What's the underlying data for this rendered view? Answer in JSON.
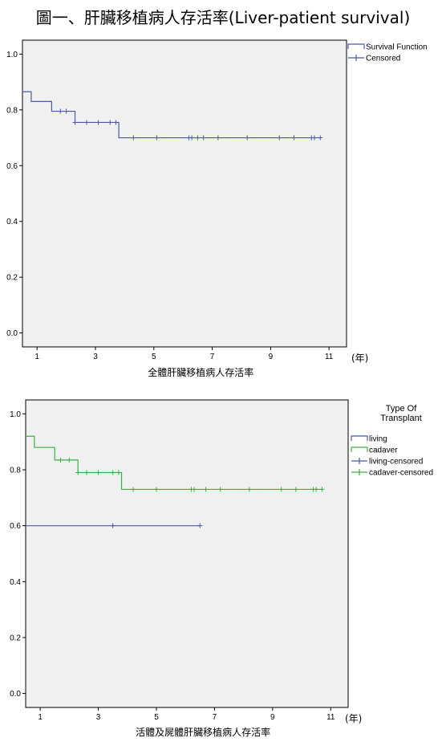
{
  "page_title": "圖一、肝臟移植病人存活率(Liver-patient survival)",
  "chart_data": [
    {
      "type": "line",
      "step": "post",
      "xlabel": "全體肝臟移植病人存活率",
      "x_unit": "(年)",
      "xlim": [
        0.5,
        11.6
      ],
      "ylim": [
        -0.05,
        1.05
      ],
      "xticks": [
        1,
        3,
        5,
        7,
        9,
        11
      ],
      "yticks": [
        0.0,
        0.2,
        0.4,
        0.6,
        0.8,
        1.0
      ],
      "ytick_labels": [
        "0.0",
        "0.2",
        "0.4",
        "0.6",
        "0.8",
        "1.0"
      ],
      "grid": false,
      "legend_position": "right-top",
      "legend_title": "",
      "series": [
        {
          "name": "Survival Function",
          "censored_name": "Censored",
          "color": "#4a5aa8",
          "steps": [
            [
              0.5,
              0.865
            ],
            [
              0.8,
              0.83
            ],
            [
              1.5,
              0.795
            ],
            [
              2.3,
              0.755
            ],
            [
              3.8,
              0.7
            ],
            [
              10.7,
              0.7
            ]
          ],
          "censored": [
            1.8,
            2.0,
            2.3,
            2.7,
            3.1,
            3.5,
            3.7,
            4.3,
            5.1,
            6.2,
            6.3,
            6.5,
            6.7,
            7.2,
            8.2,
            9.3,
            9.8,
            10.4,
            10.5,
            10.7
          ]
        }
      ]
    },
    {
      "type": "line",
      "step": "post",
      "xlabel": "活體及屍體肝臟移植病人存活率",
      "x_unit": "(年)",
      "xlim": [
        0.5,
        11.6
      ],
      "ylim": [
        -0.05,
        1.05
      ],
      "xticks": [
        1,
        3,
        5,
        7,
        9,
        11
      ],
      "yticks": [
        0.0,
        0.2,
        0.4,
        0.6,
        0.8,
        1.0
      ],
      "ytick_labels": [
        "0.0",
        "0.2",
        "0.4",
        "0.6",
        "0.8",
        "1.0"
      ],
      "grid": false,
      "legend_position": "right-top",
      "legend_title": "Type Of\nTransplant",
      "series": [
        {
          "name": "living",
          "censored_name": "living-censored",
          "color": "#4a5aa8",
          "steps": [
            [
              0.5,
              0.6
            ],
            [
              6.5,
              0.6
            ]
          ],
          "censored": [
            3.5,
            6.5
          ]
        },
        {
          "name": "cadaver",
          "censored_name": "cadaver-censored",
          "color": "#3cb043",
          "steps": [
            [
              0.5,
              0.92
            ],
            [
              0.8,
              0.88
            ],
            [
              1.5,
              0.835
            ],
            [
              2.3,
              0.79
            ],
            [
              3.8,
              0.73
            ],
            [
              10.7,
              0.73
            ]
          ],
          "censored": [
            1.7,
            2.0,
            2.3,
            2.6,
            3.0,
            3.5,
            3.7,
            4.2,
            5.0,
            6.2,
            6.3,
            6.7,
            7.2,
            8.2,
            9.3,
            9.8,
            10.4,
            10.5,
            10.7
          ]
        }
      ]
    }
  ]
}
